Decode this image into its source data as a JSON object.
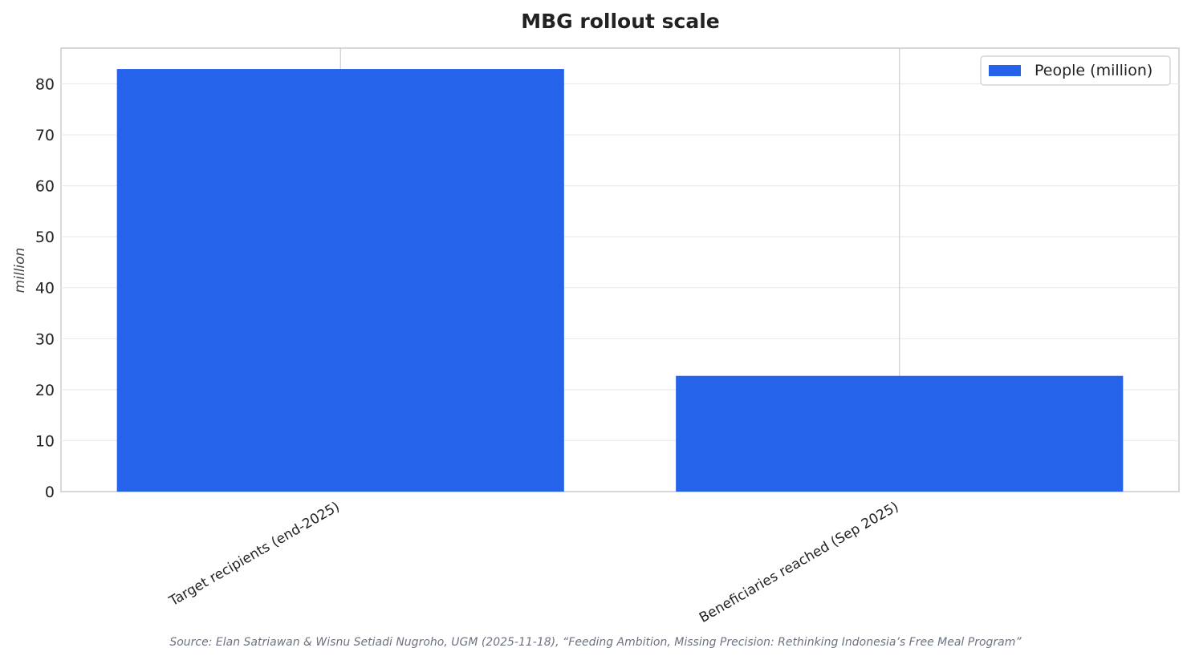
{
  "chart_data": {
    "type": "bar",
    "title": "MBG rollout scale",
    "categories": [
      "Target recipients (end-2025)",
      "Beneficiaries reached (Sep 2025)"
    ],
    "series": [
      {
        "name": "People (million)",
        "values": [
          82.9,
          22.7
        ],
        "color": "#2563eb"
      }
    ],
    "xlabel": "",
    "ylabel": "million",
    "ylim": [
      0,
      87
    ],
    "yticks": [
      0,
      10,
      20,
      30,
      40,
      50,
      60,
      70,
      80
    ],
    "grid": true,
    "legend_position": "top-right",
    "source": "Source: Elan Satriawan & Wisnu Setiadi Nugroho, UGM (2025-11-18), “Feeding Ambition, Missing Precision: Rethinking Indonesia’s Free Meal Program”"
  }
}
